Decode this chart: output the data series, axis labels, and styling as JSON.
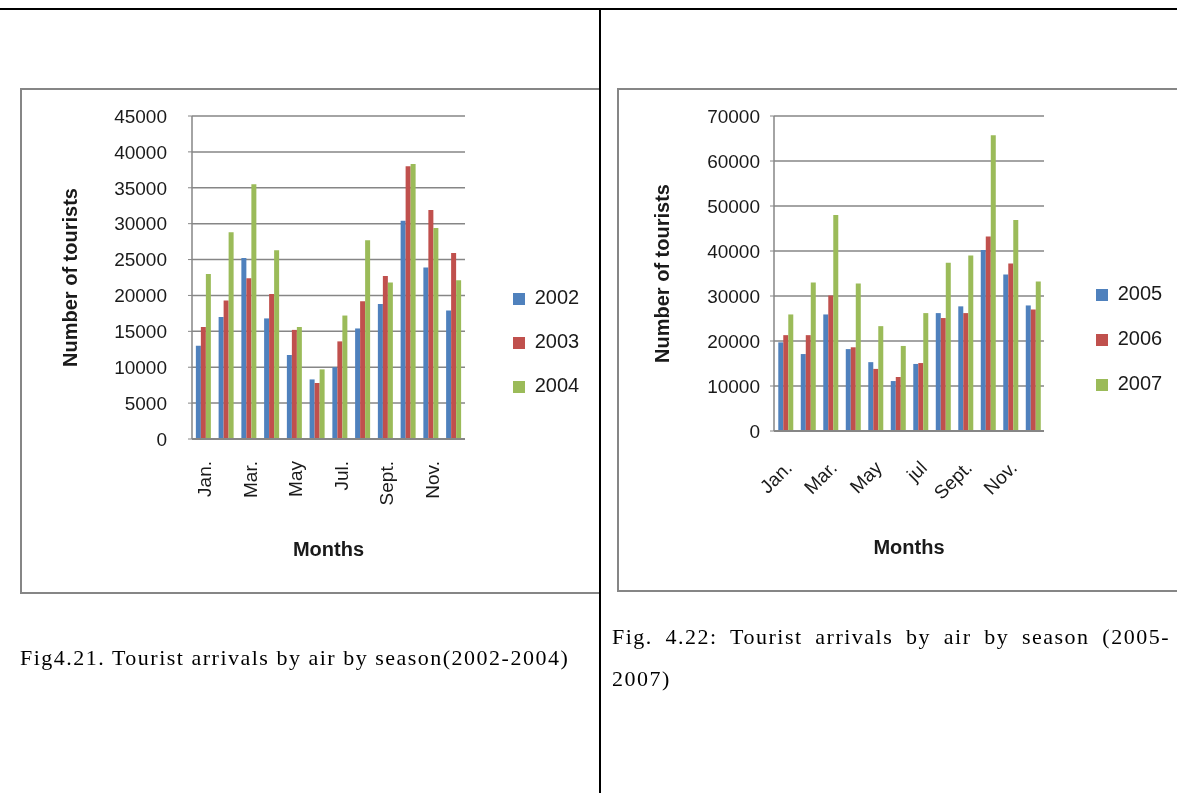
{
  "chart_data": [
    {
      "type": "bar",
      "categories": [
        "Jan.",
        null,
        "Mar.",
        null,
        "May",
        null,
        "Jul.",
        null,
        "Sept.",
        null,
        "Nov.",
        null
      ],
      "series": [
        {
          "name": "2002",
          "color": "#4f81bd",
          "values": [
            13000,
            17000,
            25200,
            16800,
            11700,
            8300,
            10000,
            15400,
            18800,
            30400,
            23900,
            17900
          ]
        },
        {
          "name": "2003",
          "color": "#c0504d",
          "values": [
            15600,
            19300,
            22400,
            20200,
            15200,
            7800,
            13600,
            19200,
            22700,
            38000,
            31900,
            25900
          ]
        },
        {
          "name": "2004",
          "color": "#9bbb59",
          "values": [
            23000,
            28800,
            35500,
            26300,
            15600,
            9700,
            17200,
            27700,
            21800,
            38300,
            29400,
            22100
          ]
        }
      ],
      "xlabel": "Months",
      "ylabel": "Number of tourists",
      "ylim": [
        0,
        45000
      ],
      "yticks": [
        0,
        5000,
        10000,
        15000,
        20000,
        25000,
        30000,
        35000,
        40000,
        45000
      ],
      "grid": "y",
      "legend": "right",
      "annotations": [
        "Fig4.21. Tourist arrivals by air by season(2002-2004)"
      ]
    },
    {
      "type": "bar",
      "categories": [
        "Jan.",
        null,
        "Mar.",
        null,
        "May",
        null,
        "jul",
        null,
        "Sept.",
        null,
        "Nov.",
        null
      ],
      "series": [
        {
          "name": "2005",
          "color": "#4f81bd",
          "values": [
            19700,
            17100,
            25900,
            18200,
            15300,
            11100,
            14900,
            26200,
            27700,
            40200,
            34800,
            27900
          ]
        },
        {
          "name": "2006",
          "color": "#c0504d",
          "values": [
            21300,
            21300,
            30100,
            18600,
            13800,
            12000,
            15100,
            25100,
            26200,
            43200,
            37200,
            27000
          ]
        },
        {
          "name": "2007",
          "color": "#9bbb59",
          "values": [
            25900,
            33000,
            48000,
            32800,
            23300,
            18900,
            26200,
            37400,
            39000,
            65700,
            46900,
            33200
          ]
        }
      ],
      "xlabel": "Months",
      "ylabel": "Number of tourists",
      "ylim": [
        0,
        70000
      ],
      "yticks": [
        0,
        10000,
        20000,
        30000,
        40000,
        50000,
        60000,
        70000
      ],
      "grid": "y",
      "legend": "right",
      "annotations": [
        "Fig. 4.22: Tourist arrivals by air by season (2005-2007)"
      ]
    }
  ]
}
